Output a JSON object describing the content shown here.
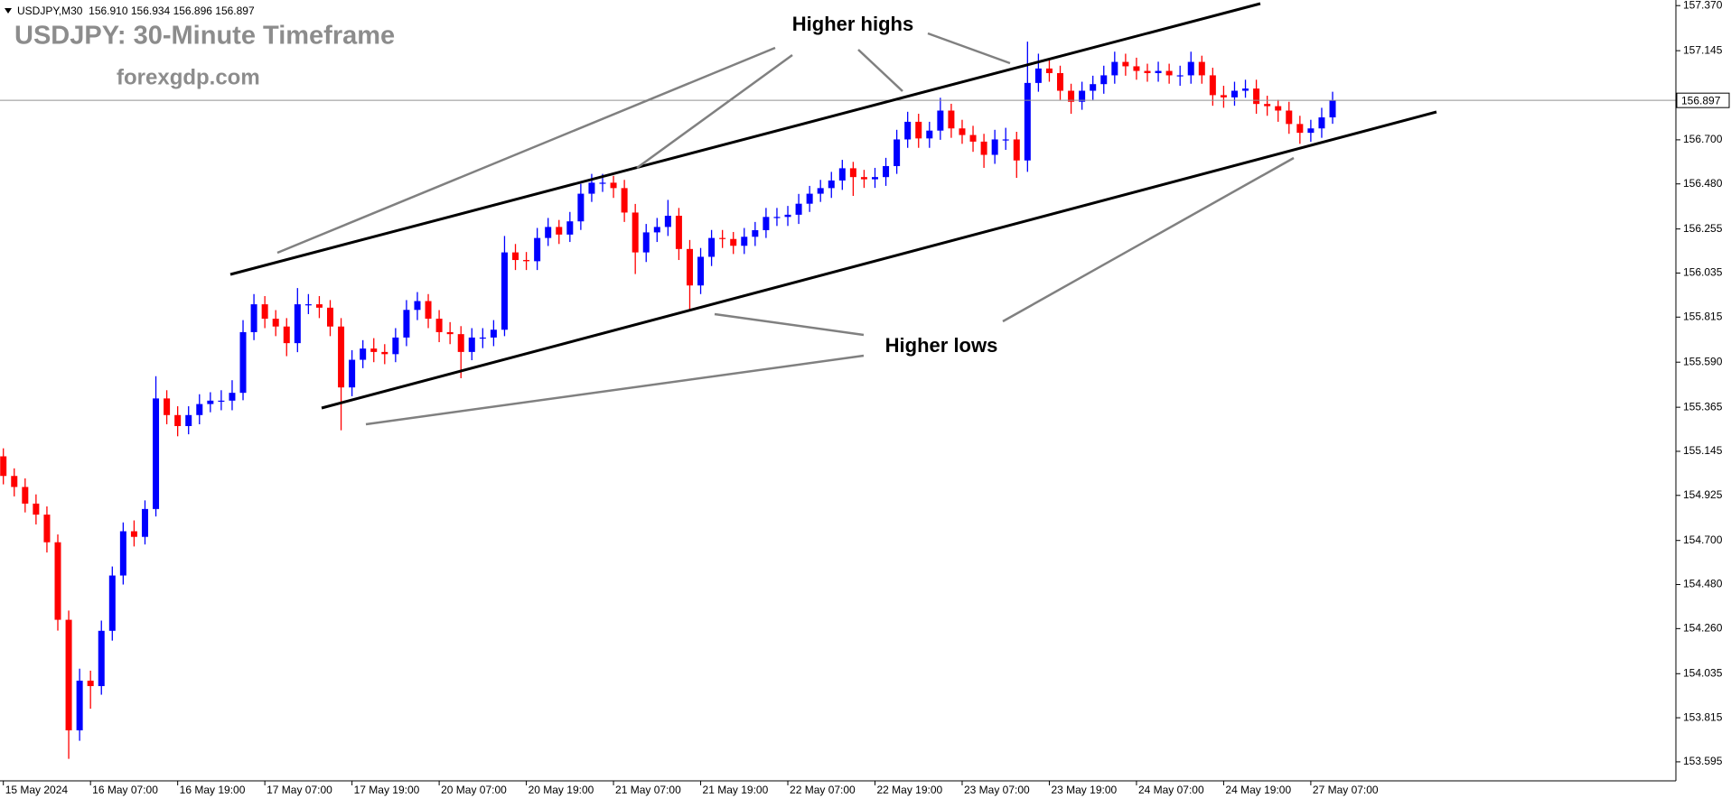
{
  "chart_data": {
    "type": "candlestick",
    "header": "USDJPY,M30  156.910 156.934 156.896 156.897",
    "title": "USDJPY: 30-Minute Timeframe",
    "subtitle": "forexgdp.com",
    "annotations": [
      "Higher highs",
      "Higher lows"
    ],
    "up_color": "#0000ff",
    "down_color": "#ff0000",
    "categories": [
      "15 May 2024",
      null,
      null,
      null,
      null,
      null,
      null,
      null,
      "16 May 07:00",
      null,
      null,
      null,
      null,
      null,
      null,
      null,
      "16 May 19:00",
      null,
      null,
      null,
      null,
      null,
      null,
      null,
      "17 May 07:00",
      null,
      null,
      null,
      null,
      null,
      null,
      null,
      "17 May 19:00",
      null,
      null,
      null,
      null,
      null,
      null,
      null,
      "20 May 07:00",
      null,
      null,
      null,
      null,
      null,
      null,
      null,
      "20 May 19:00",
      null,
      null,
      null,
      null,
      null,
      null,
      null,
      "21 May 07:00",
      null,
      null,
      null,
      null,
      null,
      null,
      null,
      "21 May 19:00",
      null,
      null,
      null,
      null,
      null,
      null,
      null,
      "22 May 07:00",
      null,
      null,
      null,
      null,
      null,
      null,
      null,
      "22 May 19:00",
      null,
      null,
      null,
      null,
      null,
      null,
      null,
      "23 May 07:00",
      null,
      null,
      null,
      null,
      null,
      null,
      null,
      "23 May 19:00",
      null,
      null,
      null,
      null,
      null,
      null,
      null,
      "24 May 07:00",
      null,
      null,
      null,
      null,
      null,
      null,
      null,
      "24 May 19:00",
      null,
      null,
      null,
      null,
      null,
      null,
      null,
      "27 May 07:00",
      null,
      null
    ],
    "open": [
      155.12,
      155.022,
      154.967,
      154.884,
      154.829,
      154.691,
      154.304,
      153.752,
      154.0,
      153.973,
      154.249,
      154.525,
      154.746,
      154.718,
      154.857,
      155.409,
      155.326,
      155.271,
      155.326,
      155.381,
      155.398,
      155.398,
      155.437,
      155.74,
      155.879,
      155.807,
      155.768,
      155.685,
      155.879,
      155.879,
      155.862,
      155.768,
      155.464,
      155.602,
      155.658,
      155.641,
      155.63,
      155.713,
      155.851,
      155.895,
      155.807,
      155.74,
      155.73,
      155.641,
      155.713,
      155.713,
      155.752,
      156.138,
      156.1,
      156.094,
      156.21,
      156.265,
      156.227,
      156.293,
      156.431,
      156.486,
      156.486,
      156.459,
      156.337,
      156.138,
      156.238,
      156.265,
      156.321,
      156.155,
      155.973,
      156.116,
      156.21,
      156.205,
      156.171,
      156.216,
      156.249,
      156.315,
      156.315,
      156.326,
      156.381,
      156.431,
      156.459,
      156.497,
      156.558,
      156.514,
      156.503,
      156.514,
      156.569,
      156.702,
      156.79,
      156.707,
      156.746,
      156.846,
      156.757,
      156.724,
      156.691,
      156.625,
      156.702,
      156.702,
      156.597,
      156.984,
      157.056,
      157.033,
      156.945,
      156.89,
      156.945,
      156.978,
      157.022,
      157.089,
      157.067,
      157.044,
      157.033,
      157.044,
      157.022,
      157.022,
      157.089,
      157.022,
      156.923,
      156.912,
      156.945,
      156.956,
      156.879,
      156.868,
      156.846,
      156.779,
      156.735,
      156.757,
      156.812
    ],
    "high": [
      155.16,
      155.06,
      155.01,
      154.93,
      154.87,
      154.73,
      154.35,
      154.06,
      154.05,
      154.3,
      154.57,
      154.79,
      154.8,
      154.9,
      155.52,
      155.45,
      155.37,
      155.37,
      155.43,
      155.44,
      155.45,
      155.5,
      155.8,
      155.93,
      155.92,
      155.85,
      155.81,
      155.96,
      155.93,
      155.92,
      155.9,
      155.81,
      155.65,
      155.7,
      155.71,
      155.68,
      155.76,
      155.9,
      155.94,
      155.93,
      155.85,
      155.79,
      155.77,
      155.76,
      155.76,
      155.8,
      156.22,
      156.18,
      156.14,
      156.26,
      156.31,
      156.3,
      156.34,
      156.48,
      156.53,
      156.53,
      156.52,
      156.5,
      156.38,
      156.28,
      156.31,
      156.4,
      156.36,
      156.2,
      156.16,
      156.25,
      156.25,
      156.24,
      156.26,
      156.29,
      156.36,
      156.36,
      156.37,
      156.43,
      156.47,
      156.5,
      156.54,
      156.6,
      156.59,
      156.55,
      156.56,
      156.61,
      156.75,
      156.84,
      156.83,
      156.79,
      156.91,
      156.88,
      156.8,
      156.77,
      156.73,
      156.75,
      156.76,
      156.74,
      157.19,
      157.13,
      157.1,
      157.07,
      156.98,
      156.99,
      157.02,
      157.07,
      157.14,
      157.13,
      157.11,
      157.08,
      157.09,
      157.08,
      157.07,
      157.14,
      157.12,
      157.06,
      156.97,
      156.99,
      157.0,
      157.0,
      156.92,
      156.9,
      156.89,
      156.82,
      156.8,
      156.86,
      156.94
    ],
    "low": [
      154.98,
      154.92,
      154.84,
      154.78,
      154.64,
      154.25,
      153.61,
      153.7,
      153.86,
      153.93,
      154.2,
      154.48,
      154.67,
      154.68,
      154.82,
      155.28,
      155.22,
      155.23,
      155.28,
      155.34,
      155.35,
      155.35,
      155.4,
      155.7,
      155.76,
      155.72,
      155.62,
      155.64,
      155.83,
      155.81,
      155.72,
      155.25,
      155.42,
      155.56,
      155.59,
      155.58,
      155.59,
      155.67,
      155.8,
      155.76,
      155.69,
      155.68,
      155.51,
      155.6,
      155.66,
      155.67,
      155.72,
      156.05,
      156.05,
      156.05,
      156.17,
      156.18,
      156.19,
      156.25,
      156.39,
      156.44,
      156.41,
      156.29,
      156.03,
      156.09,
      156.19,
      156.22,
      156.1,
      155.85,
      155.93,
      156.07,
      156.16,
      156.13,
      156.13,
      156.17,
      156.21,
      156.27,
      156.27,
      156.28,
      156.34,
      156.39,
      156.41,
      156.45,
      156.42,
      156.46,
      156.46,
      156.47,
      156.53,
      156.66,
      156.66,
      156.66,
      156.7,
      156.71,
      156.68,
      156.64,
      156.56,
      156.58,
      156.65,
      156.51,
      156.54,
      156.94,
      156.99,
      156.9,
      156.83,
      156.85,
      156.9,
      156.93,
      156.98,
      157.02,
      157.0,
      156.99,
      156.99,
      156.98,
      156.97,
      156.98,
      156.98,
      156.87,
      156.86,
      156.87,
      156.91,
      156.83,
      156.82,
      156.79,
      156.73,
      156.68,
      156.69,
      156.71,
      156.78
    ],
    "close": [
      155.022,
      154.967,
      154.884,
      154.829,
      154.691,
      154.304,
      153.752,
      154.0,
      153.973,
      154.249,
      154.525,
      154.746,
      154.718,
      154.857,
      155.409,
      155.326,
      155.271,
      155.326,
      155.381,
      155.398,
      155.398,
      155.437,
      155.74,
      155.879,
      155.807,
      155.768,
      155.685,
      155.879,
      155.879,
      155.862,
      155.768,
      155.464,
      155.602,
      155.658,
      155.641,
      155.63,
      155.713,
      155.851,
      155.895,
      155.807,
      155.74,
      155.73,
      155.641,
      155.713,
      155.713,
      155.752,
      156.138,
      156.1,
      156.094,
      156.21,
      156.265,
      156.227,
      156.293,
      156.431,
      156.486,
      156.486,
      156.459,
      156.337,
      156.138,
      156.238,
      156.265,
      156.321,
      156.155,
      155.973,
      156.116,
      156.21,
      156.205,
      156.171,
      156.216,
      156.249,
      156.315,
      156.315,
      156.326,
      156.381,
      156.431,
      156.459,
      156.497,
      156.558,
      156.514,
      156.503,
      156.514,
      156.569,
      156.702,
      156.79,
      156.707,
      156.746,
      156.846,
      156.757,
      156.724,
      156.691,
      156.625,
      156.702,
      156.702,
      156.597,
      156.984,
      157.056,
      157.033,
      156.945,
      156.89,
      156.945,
      156.978,
      157.022,
      157.089,
      157.067,
      157.044,
      157.033,
      157.044,
      157.022,
      157.022,
      157.089,
      157.022,
      156.923,
      156.912,
      156.945,
      156.956,
      156.879,
      156.868,
      156.846,
      156.779,
      156.735,
      156.757,
      156.812,
      156.897
    ],
    "ylim": [
      153.5,
      157.398
    ],
    "yticks": [
      {
        "value": 157.37,
        "label": "157.370"
      },
      {
        "value": 157.145,
        "label": "157.145"
      },
      {
        "value": 156.7,
        "label": "156.700"
      },
      {
        "value": 156.48,
        "label": "156.480"
      },
      {
        "value": 156.255,
        "label": "156.255"
      },
      {
        "value": 156.035,
        "label": "156.035"
      },
      {
        "value": 155.815,
        "label": "155.815"
      },
      {
        "value": 155.59,
        "label": "155.590"
      },
      {
        "value": 155.365,
        "label": "155.365"
      },
      {
        "value": 155.145,
        "label": "155.145"
      },
      {
        "value": 154.925,
        "label": "154.925"
      },
      {
        "value": 154.7,
        "label": "154.700"
      },
      {
        "value": 154.48,
        "label": "154.480"
      },
      {
        "value": 154.26,
        "label": "154.260"
      },
      {
        "value": 154.035,
        "label": "154.035"
      },
      {
        "value": 153.815,
        "label": "153.815"
      },
      {
        "value": 153.595,
        "label": "153.595"
      }
    ],
    "current_price": {
      "value": 156.897,
      "label": "156.897"
    },
    "grid": false
  }
}
